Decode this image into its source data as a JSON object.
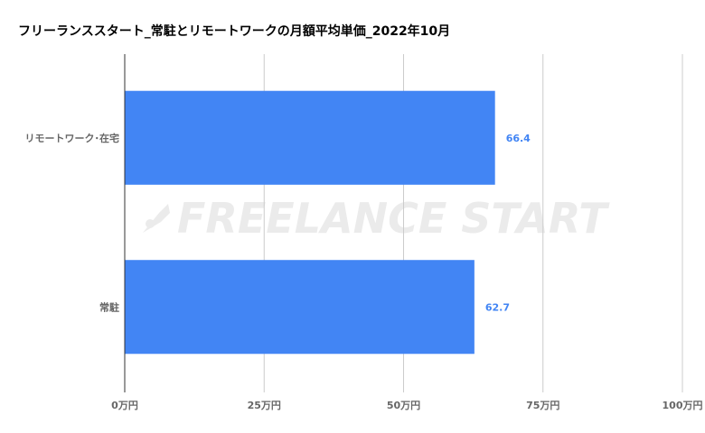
{
  "chart_data": {
    "type": "bar",
    "orientation": "horizontal",
    "title": "フリーランススタート_常駐とリモートワークの月額平均単価_2022年10月",
    "categories": [
      "リモートワーク･在宅",
      "常駐"
    ],
    "values": [
      66.4,
      62.7
    ],
    "data_labels": [
      "66.4",
      "62.7"
    ],
    "xlim": [
      0,
      100
    ],
    "x_ticks": [
      0,
      25,
      50,
      75,
      100
    ],
    "x_tick_labels": [
      "0万円",
      "25万円",
      "50万円",
      "75万円",
      "100万円"
    ],
    "bar_color": "#4285f4",
    "label_color": "#4285f4",
    "grid": true,
    "legend": "none",
    "watermark": "FREELANCE START"
  }
}
